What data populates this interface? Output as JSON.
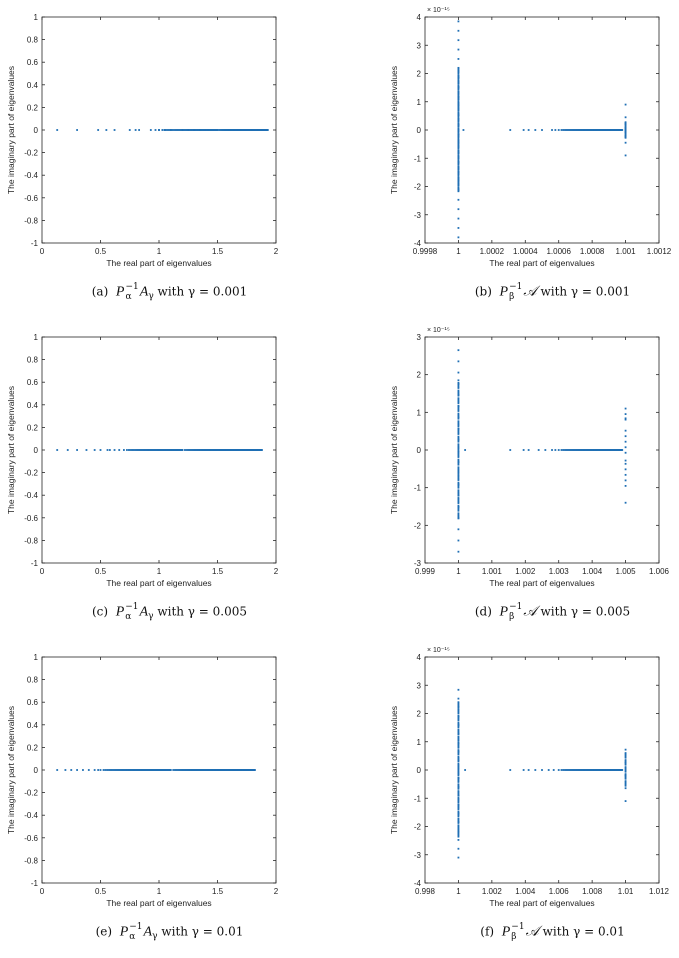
{
  "chart_data": [
    {
      "id": "a",
      "type": "scatter",
      "xlabel": "The real part of eigenvalues",
      "ylabel": "The imaginary part of eigenvalues",
      "xlim": [
        0,
        2
      ],
      "ylim": [
        -1,
        1
      ],
      "xticks": [
        "0",
        "0.5",
        "1",
        "1.5",
        "2"
      ],
      "xtick_values": [
        0,
        0.5,
        1,
        1.5,
        2
      ],
      "yticks": [
        "-1",
        "-0.8",
        "-0.6",
        "-0.4",
        "-0.2",
        "0",
        "0.2",
        "0.4",
        "0.6",
        "0.8",
        "1"
      ],
      "ytick_values": [
        -1,
        -0.8,
        -0.6,
        -0.4,
        -0.2,
        0,
        0.2,
        0.4,
        0.6,
        0.8,
        1
      ],
      "exponent": "",
      "points_real": [
        0.13,
        0.3,
        0.48,
        0.55,
        0.62,
        0.75,
        0.8,
        0.83,
        0.93,
        0.97,
        1.0,
        1.05,
        1.1,
        1.2,
        1.25,
        1.3,
        1.35
      ],
      "points_imag": 0,
      "dense_segments": [
        [
          1.0,
          1.5,
          60
        ],
        [
          1.5,
          1.93,
          120
        ]
      ],
      "vertical_clusters": [],
      "caption": {
        "label": "(a)",
        "mat": "P",
        "sub": "α",
        "sup": "−1",
        "mat2": "A",
        "sub2": "γ",
        "text": "with γ = 0.001"
      }
    },
    {
      "id": "b",
      "type": "scatter",
      "xlabel": "The real part of eigenvalues",
      "ylabel": "The imaginary part of eigenvalues",
      "xlim": [
        0.9998,
        1.0012
      ],
      "ylim": [
        -4,
        4
      ],
      "xticks": [
        "0.9998",
        "1",
        "1.0002",
        "1.0004",
        "1.0006",
        "1.0008",
        "1.001",
        "1.0012"
      ],
      "xtick_values": [
        0.9998,
        1,
        1.0002,
        1.0004,
        1.0006,
        1.0008,
        1.001,
        1.0012
      ],
      "yticks": [
        "-4",
        "-3",
        "-2",
        "-1",
        "0",
        "1",
        "2",
        "3",
        "4"
      ],
      "ytick_values": [
        -4,
        -3,
        -2,
        -1,
        0,
        1,
        2,
        3,
        4
      ],
      "exponent": "× 10⁻¹⁵",
      "points_real": [
        1.00003,
        1.00031,
        1.00039,
        1.00042,
        1.00046,
        1.0005,
        1.00056,
        1.00058
      ],
      "points_imag": 0,
      "dense_segments": [
        [
          1.0006,
          1.00098,
          90
        ]
      ],
      "vertical_clusters": [
        {
          "x": 1,
          "ymin": -3.8,
          "ymax": 3.9,
          "count": 140,
          "dense_range": [
            -2.2,
            2.2
          ]
        },
        {
          "x": 1.001,
          "ymin": -0.9,
          "ymax": 0.9,
          "count": 25,
          "dense_range": [
            -0.3,
            0.3
          ]
        }
      ],
      "caption": {
        "label": "(b)",
        "mat": "P",
        "sub": "β",
        "sup": "−1",
        "mat2": "𝒜",
        "sub2": "",
        "text": "with γ = 0.001"
      }
    },
    {
      "id": "c",
      "type": "scatter",
      "xlabel": "The real part of eigenvalues",
      "ylabel": "The imaginary part of eigenvalues",
      "xlim": [
        0,
        2
      ],
      "ylim": [
        -1,
        1
      ],
      "xticks": [
        "0",
        "0.5",
        "1",
        "1.5",
        "2"
      ],
      "xtick_values": [
        0,
        0.5,
        1,
        1.5,
        2
      ],
      "yticks": [
        "-1",
        "-0.8",
        "-0.6",
        "-0.4",
        "-0.2",
        "0",
        "0.2",
        "0.4",
        "0.6",
        "0.8",
        "1"
      ],
      "ytick_values": [
        -1,
        -0.8,
        -0.6,
        -0.4,
        -0.2,
        0,
        0.2,
        0.4,
        0.6,
        0.8,
        1
      ],
      "exponent": "",
      "points_real": [
        0.13,
        0.22,
        0.3,
        0.38,
        0.45,
        0.5,
        0.56,
        0.58,
        0.62,
        0.66
      ],
      "points_imag": 0,
      "dense_segments": [
        [
          0.7,
          1.2,
          70
        ],
        [
          1.2,
          1.88,
          140
        ]
      ],
      "vertical_clusters": [],
      "caption": {
        "label": "(c)",
        "mat": "P",
        "sub": "α",
        "sup": "−1",
        "mat2": "A",
        "sub2": "γ",
        "text": "with γ = 0.005"
      }
    },
    {
      "id": "d",
      "type": "scatter",
      "xlabel": "The real part of eigenvalues",
      "ylabel": "The imaginary part of eigenvalues",
      "xlim": [
        0.999,
        1.006
      ],
      "ylim": [
        -3,
        3
      ],
      "xticks": [
        "0.999",
        "1",
        "1.001",
        "1.002",
        "1.003",
        "1.004",
        "1.005",
        "1.006"
      ],
      "xtick_values": [
        0.999,
        1,
        1.001,
        1.002,
        1.003,
        1.004,
        1.005,
        1.006
      ],
      "yticks": [
        "-3",
        "-2",
        "-1",
        "0",
        "1",
        "2",
        "3"
      ],
      "ytick_values": [
        -3,
        -2,
        -1,
        0,
        1,
        2,
        3
      ],
      "exponent": "× 10⁻¹⁵",
      "points_real": [
        1.0002,
        1.00155,
        1.00195,
        1.0021,
        1.0024,
        1.0026,
        1.0028,
        1.0029
      ],
      "points_imag": 0,
      "dense_segments": [
        [
          1.003,
          1.0049,
          90
        ]
      ],
      "vertical_clusters": [
        {
          "x": 1,
          "ymin": -2.7,
          "ymax": 2.7,
          "count": 110,
          "dense_range": [
            -1.85,
            1.85
          ]
        },
        {
          "x": 1.005,
          "ymin": -1.4,
          "ymax": 1.4,
          "count": 16,
          "dense_range": [
            -1.1,
            1.1
          ]
        }
      ],
      "caption": {
        "label": "(d)",
        "mat": "P",
        "sub": "β",
        "sup": "−1",
        "mat2": "𝒜",
        "sub2": "",
        "text": "with γ = 0.005"
      }
    },
    {
      "id": "e",
      "type": "scatter",
      "xlabel": "The real part of eigenvalues",
      "ylabel": "The imaginary part of eigenvalues",
      "xlim": [
        0,
        2
      ],
      "ylim": [
        -1,
        1
      ],
      "xticks": [
        "0",
        "0.5",
        "1",
        "1.5",
        "2"
      ],
      "xtick_values": [
        0,
        0.5,
        1,
        1.5,
        2
      ],
      "yticks": [
        "-1",
        "-0.8",
        "-0.6",
        "-0.4",
        "-0.2",
        "0",
        "0.2",
        "0.4",
        "0.6",
        "0.8",
        "1"
      ],
      "ytick_values": [
        -1,
        -0.8,
        -0.6,
        -0.4,
        -0.2,
        0,
        0.2,
        0.4,
        0.6,
        0.8,
        1
      ],
      "exponent": "",
      "points_real": [
        0.13,
        0.2,
        0.25,
        0.3,
        0.35,
        0.4,
        0.45,
        0.48
      ],
      "points_imag": 0,
      "dense_segments": [
        [
          0.5,
          1.1,
          90
        ],
        [
          1.1,
          1.82,
          150
        ]
      ],
      "vertical_clusters": [],
      "caption": {
        "label": "(e)",
        "mat": "P",
        "sub": "α",
        "sup": "−1",
        "mat2": "A",
        "sub2": "γ",
        "text": "with γ = 0.01"
      }
    },
    {
      "id": "f",
      "type": "scatter",
      "xlabel": "The real part of eigenvalues",
      "ylabel": "The imaginary part of eigenvalues",
      "xlim": [
        0.998,
        1.012
      ],
      "ylim": [
        -4,
        4
      ],
      "xticks": [
        "0.998",
        "1",
        "1.002",
        "1.004",
        "1.006",
        "1.008",
        "1.01",
        "1.012"
      ],
      "xtick_values": [
        0.998,
        1,
        1.002,
        1.004,
        1.006,
        1.008,
        1.01,
        1.012
      ],
      "yticks": [
        "-4",
        "-3",
        "-2",
        "-1",
        "0",
        "1",
        "2",
        "3",
        "4"
      ],
      "ytick_values": [
        -4,
        -3,
        -2,
        -1,
        0,
        1,
        2,
        3,
        4
      ],
      "exponent": "× 10⁻¹⁵",
      "points_real": [
        1.0004,
        1.0031,
        1.0039,
        1.0042,
        1.0046,
        1.005,
        1.0054,
        1.0057
      ],
      "points_imag": 0,
      "dense_segments": [
        [
          1.006,
          1.0098,
          90
        ]
      ],
      "vertical_clusters": [
        {
          "x": 1,
          "ymin": -3.1,
          "ymax": 3.1,
          "count": 120,
          "dense_range": [
            -2.4,
            2.4
          ]
        },
        {
          "x": 1.01,
          "ymin": -1.1,
          "ymax": 1.1,
          "count": 30,
          "dense_range": [
            -0.6,
            0.6
          ]
        }
      ],
      "caption": {
        "label": "(f)",
        "mat": "P",
        "sub": "β",
        "sup": "−1",
        "mat2": "𝒜",
        "sub2": "",
        "text": "with γ = 0.01"
      }
    }
  ],
  "colors": {
    "marker": "#1f6fb4",
    "axis": "#262626"
  }
}
